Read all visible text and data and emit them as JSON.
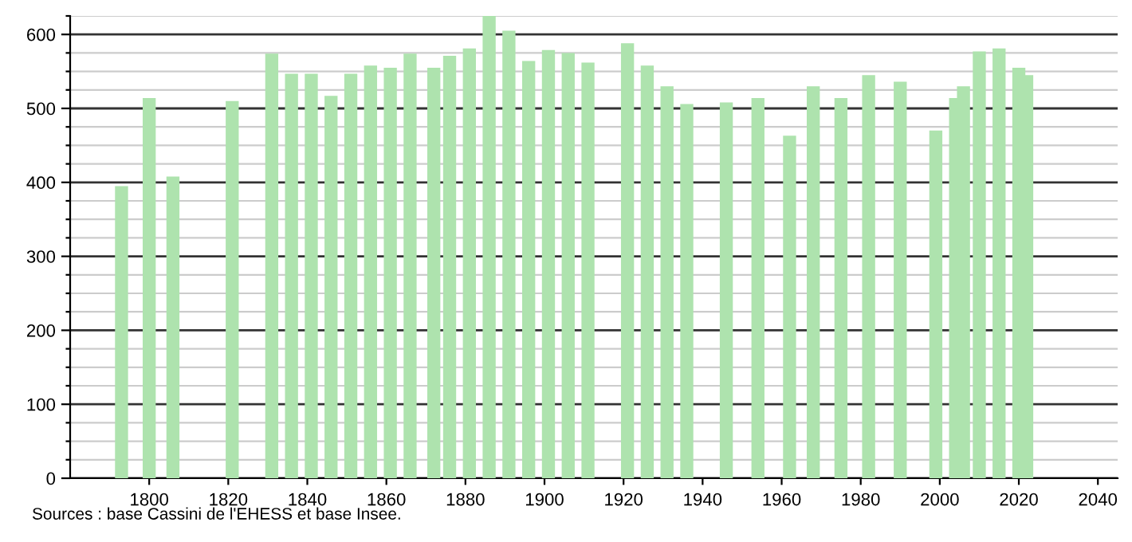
{
  "chart_data": {
    "type": "bar",
    "x": [
      1793,
      1800,
      1806,
      1821,
      1831,
      1836,
      1841,
      1846,
      1851,
      1856,
      1861,
      1866,
      1872,
      1876,
      1881,
      1886,
      1891,
      1896,
      1901,
      1906,
      1911,
      1921,
      1926,
      1931,
      1936,
      1946,
      1954,
      1962,
      1968,
      1975,
      1982,
      1990,
      1999,
      2004,
      2006,
      2010,
      2015,
      2020,
      2022
    ],
    "values": [
      395,
      514,
      408,
      510,
      574,
      547,
      547,
      517,
      547,
      558,
      555,
      574,
      555,
      571,
      581,
      625,
      605,
      564,
      579,
      575,
      562,
      588,
      558,
      530,
      506,
      508,
      514,
      463,
      530,
      514,
      545,
      536,
      470,
      514,
      530,
      577,
      581,
      555,
      545
    ],
    "color": "#aee3ae",
    "xlim": [
      1780,
      2045
    ],
    "xticks": [
      1800,
      1820,
      1840,
      1860,
      1880,
      1900,
      1920,
      1940,
      1960,
      1980,
      2000,
      2020,
      2040
    ],
    "ylim": [
      0,
      625
    ],
    "yticks": [
      0,
      {
        "value": 25,
        "label": null
      },
      {
        "value": 50,
        "label": null
      },
      {
        "value": 75,
        "label": null
      },
      100,
      {
        "value": 125,
        "label": null
      },
      {
        "value": 150,
        "label": null
      },
      {
        "value": 175,
        "label": null
      },
      200,
      {
        "value": 225,
        "label": null
      },
      {
        "value": 250,
        "label": null
      },
      {
        "value": 275,
        "label": null
      },
      300,
      {
        "value": 325,
        "label": null
      },
      {
        "value": 350,
        "label": null
      },
      {
        "value": 375,
        "label": null
      },
      400,
      {
        "value": 425,
        "label": null
      },
      {
        "value": 450,
        "label": null
      },
      {
        "value": 475,
        "label": null
      },
      500,
      {
        "value": 525,
        "label": null
      },
      {
        "value": 550,
        "label": null
      },
      {
        "value": 575,
        "label": null
      },
      600,
      {
        "value": 625,
        "label": null
      }
    ],
    "grid": "y",
    "annotations": [
      "Sources : base Cassini de l'EHESS et base Insee."
    ]
  }
}
